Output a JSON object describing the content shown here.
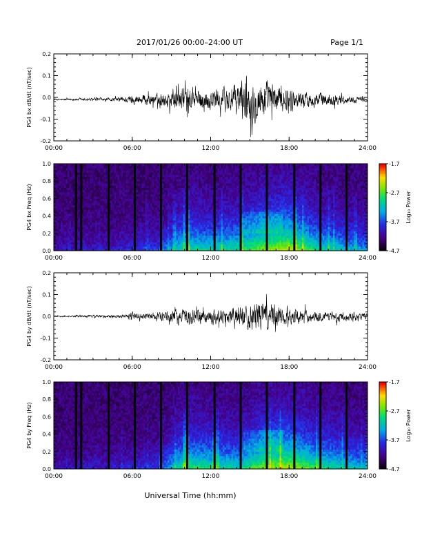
{
  "header": {
    "title": "2017/01/26  00:00–24:00 UT",
    "page": "Page 1/1"
  },
  "footer": {
    "xlabel": "Universal Time (hh:mm)"
  },
  "chart_data": [
    {
      "type": "line",
      "ylabel": "PG4 bx dB/dt (nT/sec)",
      "xlim": [
        0,
        24
      ],
      "ylim": [
        -0.2,
        0.2
      ],
      "x_ticks": [
        "00:00",
        "06:00",
        "12:00",
        "18:00",
        "24:00"
      ],
      "y_ticks": [
        "-0.2",
        "-0.1",
        "0.0",
        "0.1",
        "0.2"
      ],
      "series": [
        {
          "envelope_hours": [
            0,
            1,
            2,
            3,
            4,
            5,
            6,
            7,
            8,
            9,
            10,
            11,
            12,
            13,
            14,
            15,
            16,
            17,
            18,
            19,
            20,
            21,
            22,
            23,
            24
          ],
          "envelope_amplitude": [
            0.005,
            0.006,
            0.008,
            0.01,
            0.01,
            0.015,
            0.03,
            0.035,
            0.04,
            0.06,
            0.08,
            0.06,
            0.07,
            0.08,
            0.11,
            0.15,
            0.13,
            0.1,
            0.07,
            0.05,
            0.05,
            0.04,
            0.03,
            0.02,
            0.015
          ],
          "baseline": -0.01
        }
      ]
    },
    {
      "type": "heatmap",
      "ylabel": "PG4 bx Freq (Hz)",
      "xlim": [
        0,
        24
      ],
      "ylim": [
        0,
        1
      ],
      "x_ticks": [
        "00:00",
        "06:00",
        "12:00",
        "18:00",
        "24:00"
      ],
      "y_ticks": [
        "0.0",
        "0.2",
        "0.4",
        "0.6",
        "0.8",
        "1.0"
      ],
      "colorbar": {
        "label": "Log₁₀ Power",
        "range": [
          -4.7,
          -1.7
        ],
        "ticks": [
          "-1.7",
          "-2.7",
          "-3.7",
          "-4.7"
        ]
      },
      "gap_hours": [
        1.7,
        2.1,
        4.2,
        6.2,
        8.2,
        10.2,
        12.3,
        14.3,
        16.3,
        18.4,
        20.4,
        22.4
      ],
      "activity_hours": [
        0,
        2,
        4,
        6,
        8,
        10,
        12,
        14,
        16,
        18,
        20,
        22,
        24
      ],
      "activity_level": [
        0.1,
        0.15,
        0.15,
        0.2,
        0.25,
        0.55,
        0.5,
        0.55,
        0.7,
        0.75,
        0.55,
        0.45,
        0.35
      ]
    },
    {
      "type": "line",
      "ylabel": "PG4 by dB/dt (nT/sec)",
      "xlim": [
        0,
        24
      ],
      "ylim": [
        -0.2,
        0.2
      ],
      "x_ticks": [
        "00:00",
        "06:00",
        "12:00",
        "18:00",
        "24:00"
      ],
      "y_ticks": [
        "-0.2",
        "-0.1",
        "0.0",
        "0.1",
        "0.2"
      ],
      "series": [
        {
          "envelope_hours": [
            0,
            1,
            2,
            3,
            4,
            5,
            6,
            7,
            8,
            9,
            10,
            11,
            12,
            13,
            14,
            15,
            16,
            17,
            18,
            19,
            20,
            21,
            22,
            23,
            24
          ],
          "envelope_amplitude": [
            0.004,
            0.005,
            0.006,
            0.008,
            0.008,
            0.01,
            0.02,
            0.02,
            0.025,
            0.04,
            0.05,
            0.045,
            0.05,
            0.05,
            0.06,
            0.08,
            0.1,
            0.08,
            0.05,
            0.04,
            0.035,
            0.03,
            0.03,
            0.025,
            0.02
          ],
          "baseline": 0.0
        }
      ]
    },
    {
      "type": "heatmap",
      "ylabel": "PG4 by Freq (Hz)",
      "xlim": [
        0,
        24
      ],
      "ylim": [
        0,
        1
      ],
      "x_ticks": [
        "00:00",
        "06:00",
        "12:00",
        "18:00",
        "24:00"
      ],
      "y_ticks": [
        "0.0",
        "0.2",
        "0.4",
        "0.6",
        "0.8",
        "1.0"
      ],
      "colorbar": {
        "label": "Log₁₀ Power",
        "range": [
          -4.7,
          -1.7
        ],
        "ticks": [
          "-1.7",
          "-2.7",
          "-3.7",
          "-4.7"
        ]
      },
      "gap_hours": [
        1.7,
        2.1,
        4.2,
        6.2,
        8.2,
        10.2,
        12.3,
        14.3,
        16.3,
        18.4,
        20.4,
        22.4
      ],
      "activity_hours": [
        0,
        2,
        4,
        6,
        8,
        10,
        12,
        14,
        16,
        18,
        20,
        22,
        24
      ],
      "activity_level": [
        0.1,
        0.15,
        0.15,
        0.2,
        0.25,
        0.6,
        0.55,
        0.5,
        0.7,
        0.75,
        0.6,
        0.5,
        0.4
      ]
    }
  ]
}
